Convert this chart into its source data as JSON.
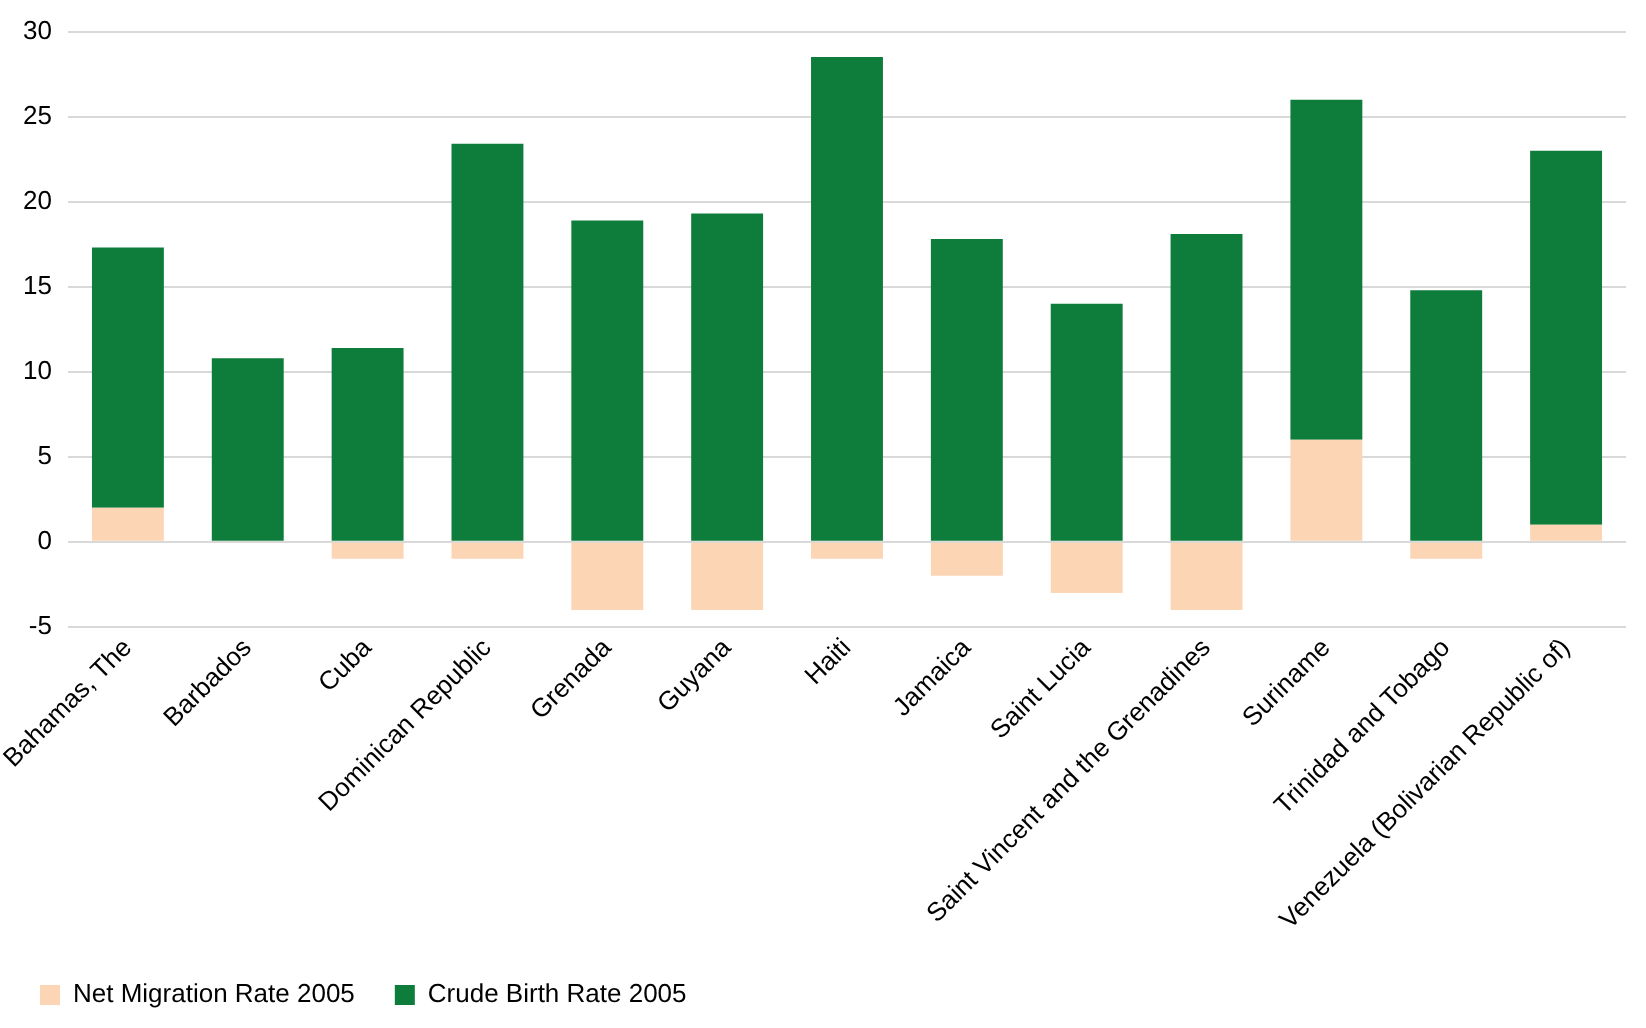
{
  "chart_data": {
    "type": "bar",
    "stacked": true,
    "categories": [
      "Bahamas, The",
      "Barbados",
      "Cuba",
      "Dominican Republic",
      "Grenada",
      "Guyana",
      "Haiti",
      "Jamaica",
      "Saint Lucia",
      "Saint Vincent and the Grenadines",
      "Suriname",
      "Trinidad and Tobago",
      "Venezuela (Bolivarian Republic of)"
    ],
    "series": [
      {
        "name": "Net Migration Rate 2005",
        "color": "#fcd5b5",
        "values": [
          2,
          0,
          -1,
          -1,
          -4,
          -4,
          -1,
          -2,
          -3,
          -4,
          6,
          -1,
          1
        ]
      },
      {
        "name": "Crude Birth Rate 2005",
        "color": "#0e7c3a",
        "values": [
          15.3,
          10.8,
          11.4,
          23.4,
          18.9,
          19.3,
          28.5,
          17.8,
          14.0,
          18.1,
          20.0,
          14.8,
          22.0
        ]
      }
    ],
    "ylim": [
      -5,
      30
    ],
    "yticks": [
      -5,
      0,
      5,
      10,
      15,
      20,
      25,
      30
    ],
    "grid": "y",
    "legend": "bottom"
  }
}
